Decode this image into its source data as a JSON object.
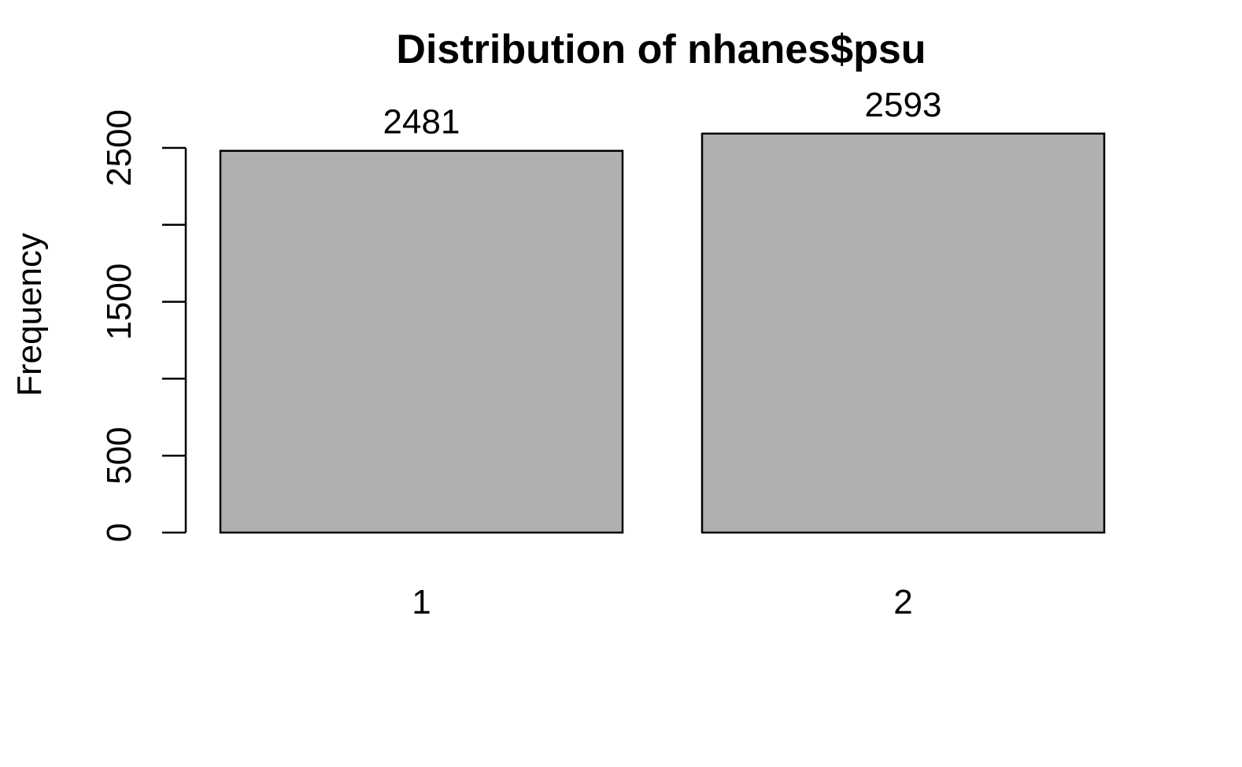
{
  "chart_data": {
    "type": "bar",
    "title": "Distribution of nhanes$psu",
    "xlabel": "",
    "ylabel": "Frequency",
    "categories": [
      "1",
      "2"
    ],
    "values": [
      2481,
      2593
    ],
    "data_labels": [
      "2481",
      "2593"
    ],
    "yticks": [
      0,
      500,
      1000,
      1500,
      2000,
      2500
    ],
    "ytick_labels": [
      "0",
      "500",
      "",
      "1500",
      "",
      "2500"
    ],
    "ylim": [
      0,
      2500
    ],
    "grid": false,
    "legend": "none",
    "bar_color": "#b0b0b0",
    "border_color": "#000000"
  }
}
